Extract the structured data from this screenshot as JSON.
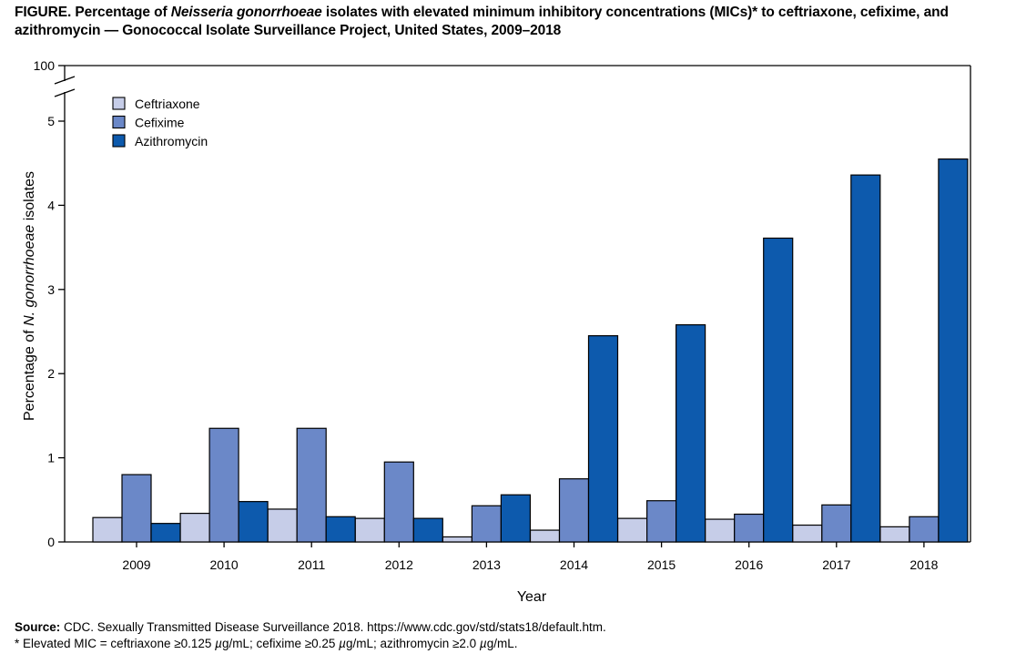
{
  "figure": {
    "title_prefix": "FIGURE. Percentage of ",
    "title_italic": "Neisseria gonorrhoeae",
    "title_line1_rest": " isolates with elevated minimum inhibitory concentrations (MICs)* to ceftriaxone, cefixime, and",
    "title_line2": "azithromycin — Gonococcal Isolate Surveillance Project, United States, 2009–2018"
  },
  "footer": {
    "source_label": "Source:",
    "source_text": " CDC. Sexually Transmitted Disease Surveillance 2018. https://www.cdc.gov/std/stats18/default.htm.",
    "note_a": "* Elevated MIC = ceftriaxone ≥0.125 ",
    "unit_mu1": "µ",
    "note_b": "g/mL; cefixime ≥0.25 ",
    "unit_mu2": "µ",
    "note_c": "g/mL; azithromycin ≥2.0 ",
    "unit_mu3": "µ",
    "note_d": "g/mL."
  },
  "chart_data": {
    "type": "bar",
    "xlabel": "Year",
    "ylabel_prefix": "Percentage of ",
    "ylabel_italic": "N. gonorrhoeae",
    "ylabel_suffix": " isolates",
    "categories": [
      "2009",
      "2010",
      "2011",
      "2012",
      "2013",
      "2014",
      "2015",
      "2016",
      "2017",
      "2018"
    ],
    "ylim": [
      0,
      5
    ],
    "axis_break": true,
    "break_top_label": "100",
    "yticks": [
      "0",
      "1",
      "2",
      "3",
      "4",
      "5"
    ],
    "legend_position": "top-left",
    "series": [
      {
        "name": "Ceftriaxone",
        "color": "#c6cde8",
        "values": [
          0.29,
          0.34,
          0.39,
          0.28,
          0.06,
          0.14,
          0.28,
          0.27,
          0.2,
          0.18
        ]
      },
      {
        "name": "Cefixime",
        "color": "#6b88c8",
        "values": [
          0.8,
          1.35,
          1.35,
          0.95,
          0.43,
          0.75,
          0.49,
          0.33,
          0.44,
          0.3
        ]
      },
      {
        "name": "Azithromycin",
        "color": "#0d5aad",
        "values": [
          0.22,
          0.48,
          0.3,
          0.28,
          0.56,
          2.45,
          2.58,
          3.61,
          4.36,
          4.55
        ]
      }
    ]
  }
}
